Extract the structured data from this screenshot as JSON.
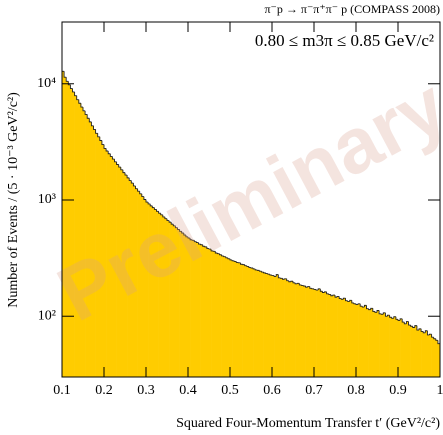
{
  "chart_data": {
    "type": "histogram",
    "title": "π⁻p → π⁻π⁺π⁻ p (COMPASS 2008)",
    "annotation": "0.80 ≤ m3π ≤ 0.85 GeV/c²",
    "watermark": "Preliminary",
    "x_label": "Squared Four-Momentum Transfer t′ (GeV²/c²)",
    "y_label": "Number of Events / (5 · 10⁻³ GeV²/c²)",
    "color": "#ffcc00",
    "edge_color": "#222222",
    "log_y": true,
    "xlim": [
      0.1,
      1
    ],
    "ylim": [
      30,
      34000
    ],
    "xticks": [
      0.1,
      0.2,
      0.3,
      0.4,
      0.5,
      0.6,
      0.7,
      0.8,
      0.9,
      1
    ],
    "yticks": [
      {
        "value": 100,
        "label": "10²"
      },
      {
        "value": 1000,
        "label": "10³"
      },
      {
        "value": 10000,
        "label": "10⁴"
      }
    ],
    "bins": [
      0.1,
      0.105,
      0.11,
      0.115,
      0.12,
      0.125,
      0.13,
      0.135,
      0.14,
      0.145,
      0.15,
      0.155,
      0.16,
      0.165,
      0.17,
      0.175,
      0.18,
      0.185,
      0.19,
      0.195,
      0.2,
      0.205,
      0.21,
      0.215,
      0.22,
      0.225,
      0.23,
      0.235,
      0.24,
      0.245,
      0.25,
      0.255,
      0.26,
      0.265,
      0.27,
      0.275,
      0.28,
      0.285,
      0.29,
      0.295,
      0.3,
      0.305,
      0.31,
      0.315,
      0.32,
      0.325,
      0.33,
      0.335,
      0.34,
      0.345,
      0.35,
      0.355,
      0.36,
      0.365,
      0.37,
      0.375,
      0.38,
      0.385,
      0.39,
      0.395,
      0.4,
      0.405,
      0.41,
      0.415,
      0.42,
      0.425,
      0.43,
      0.435,
      0.44,
      0.445,
      0.45,
      0.455,
      0.46,
      0.465,
      0.47,
      0.475,
      0.48,
      0.485,
      0.49,
      0.495,
      0.5,
      0.505,
      0.51,
      0.515,
      0.52,
      0.525,
      0.53,
      0.535,
      0.54,
      0.545,
      0.55,
      0.555,
      0.56,
      0.565,
      0.57,
      0.575,
      0.58,
      0.585,
      0.59,
      0.595,
      0.6,
      0.605,
      0.61,
      0.615,
      0.62,
      0.625,
      0.63,
      0.635,
      0.64,
      0.645,
      0.65,
      0.655,
      0.66,
      0.665,
      0.67,
      0.675,
      0.68,
      0.685,
      0.69,
      0.695,
      0.7,
      0.705,
      0.71,
      0.715,
      0.72,
      0.725,
      0.73,
      0.735,
      0.74,
      0.745,
      0.75,
      0.755,
      0.76,
      0.765,
      0.77,
      0.775,
      0.78,
      0.785,
      0.79,
      0.795,
      0.8,
      0.805,
      0.81,
      0.815,
      0.82,
      0.825,
      0.83,
      0.835,
      0.84,
      0.845,
      0.85,
      0.855,
      0.86,
      0.865,
      0.87,
      0.875,
      0.88,
      0.885,
      0.89,
      0.895,
      0.9,
      0.905,
      0.91,
      0.915,
      0.92,
      0.925,
      0.93,
      0.935,
      0.94,
      0.945,
      0.95,
      0.955,
      0.96,
      0.965,
      0.97,
      0.975,
      0.98,
      0.985,
      0.99,
      0.995,
      1
    ],
    "values": [
      12800,
      11400,
      10500,
      9800,
      9100,
      8500,
      7900,
      7300,
      6800,
      6300,
      5850,
      5450,
      5050,
      4700,
      4350,
      4050,
      3750,
      3500,
      3250,
      3000,
      2780,
      2640,
      2500,
      2370,
      2250,
      2130,
      2020,
      1920,
      1820,
      1720,
      1640,
      1550,
      1470,
      1400,
      1320,
      1250,
      1190,
      1130,
      1070,
      1010,
      960,
      925,
      890,
      860,
      830,
      800,
      770,
      745,
      715,
      690,
      665,
      645,
      620,
      600,
      578,
      558,
      538,
      520,
      500,
      482,
      470,
      455,
      450,
      438,
      430,
      418,
      412,
      400,
      395,
      382,
      378,
      365,
      362,
      350,
      345,
      338,
      330,
      325,
      318,
      312,
      305,
      300,
      296,
      290,
      288,
      280,
      278,
      272,
      268,
      262,
      260,
      255,
      250,
      248,
      244,
      240,
      236,
      233,
      230,
      226,
      224,
      220,
      228,
      214,
      212,
      208,
      210,
      202,
      198,
      200,
      194,
      190,
      192,
      186,
      184,
      182,
      178,
      180,
      174,
      172,
      170,
      168,
      172,
      164,
      160,
      162,
      156,
      154,
      150,
      152,
      146,
      148,
      142,
      140,
      143,
      136,
      134,
      137,
      130,
      128,
      126,
      128,
      122,
      120,
      124,
      116,
      114,
      117,
      110,
      108,
      112,
      105,
      104,
      107,
      100,
      102,
      98,
      96,
      99,
      94,
      92,
      95,
      89,
      86,
      90,
      84,
      82,
      80,
      83,
      76,
      78,
      74,
      72,
      75,
      69,
      70,
      66,
      64,
      62,
      58
    ]
  }
}
